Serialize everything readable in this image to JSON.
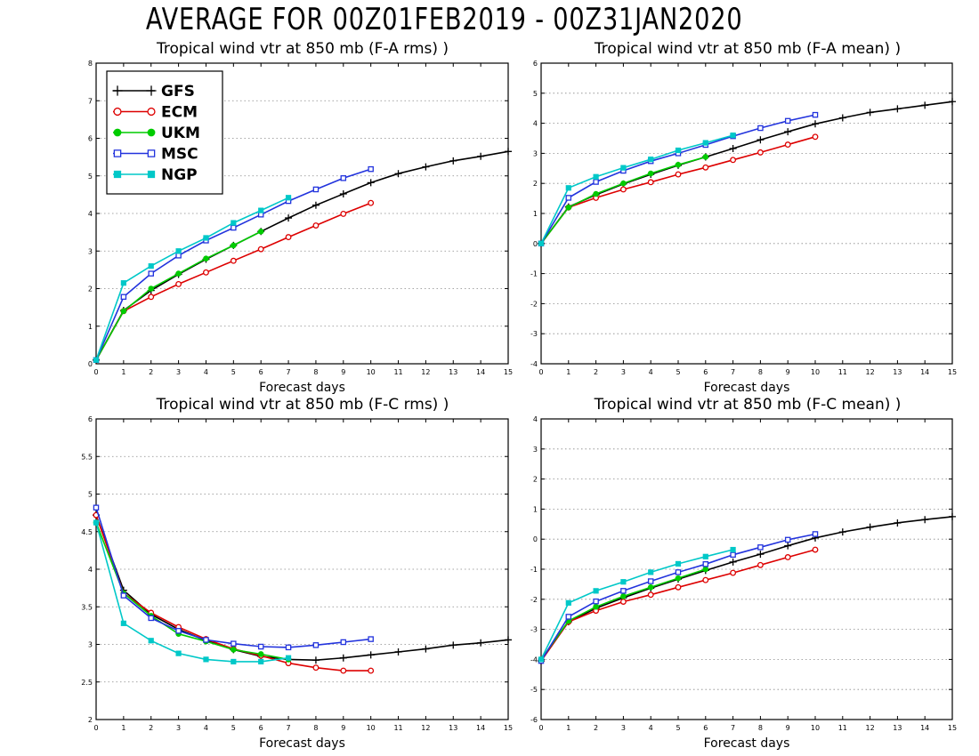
{
  "page_title": "AVERAGE FOR 00Z01FEB2019 - 00Z31JAN2020",
  "colors": {
    "GFS": "#000000",
    "ECM": "#dd0000",
    "UKM": "#00cc00",
    "MSC": "#2233dd",
    "NGP": "#00c8c8"
  },
  "legend": [
    {
      "name": "GFS",
      "marker": "plus"
    },
    {
      "name": "ECM",
      "marker": "circle-open"
    },
    {
      "name": "UKM",
      "marker": "circle-filled"
    },
    {
      "name": "MSC",
      "marker": "square-open"
    },
    {
      "name": "NGP",
      "marker": "square-filled"
    }
  ],
  "chart_data": [
    {
      "type": "line",
      "title": "Tropical wind vtr at 850 mb (F-A rms) )",
      "xlabel": "Forecast days",
      "ylabel": "",
      "xlim": [
        0,
        15
      ],
      "ylim": [
        0,
        8
      ],
      "xticks": [
        "0",
        "1",
        "2",
        "3",
        "4",
        "5",
        "6",
        "7",
        "8",
        "9",
        "10",
        "11",
        "12",
        "13",
        "14",
        "15"
      ],
      "yticks": [
        "0",
        "1",
        "2",
        "3",
        "4",
        "5",
        "6",
        "7",
        "8"
      ],
      "legend_position": "top-left",
      "series": [
        {
          "name": "GFS",
          "x": [
            0,
            1,
            2,
            3,
            4,
            5,
            6,
            7,
            8,
            9,
            10,
            11,
            12,
            13,
            14,
            15
          ],
          "y": [
            0.1,
            1.42,
            1.95,
            2.38,
            2.78,
            3.15,
            3.52,
            3.88,
            4.22,
            4.52,
            4.82,
            5.06,
            5.24,
            5.4,
            5.52,
            5.65
          ]
        },
        {
          "name": "ECM",
          "x": [
            0,
            1,
            2,
            3,
            4,
            5,
            6,
            7,
            8,
            9,
            10
          ],
          "y": [
            0.1,
            1.4,
            1.78,
            2.12,
            2.43,
            2.74,
            3.05,
            3.37,
            3.68,
            3.99,
            4.28
          ]
        },
        {
          "name": "UKM",
          "x": [
            0,
            1,
            2,
            3,
            4,
            5,
            6
          ],
          "y": [
            0.1,
            1.4,
            2.0,
            2.4,
            2.8,
            3.15,
            3.52
          ]
        },
        {
          "name": "MSC",
          "x": [
            0,
            1,
            2,
            3,
            4,
            5,
            6,
            7,
            8,
            9,
            10
          ],
          "y": [
            0.1,
            1.78,
            2.4,
            2.88,
            3.28,
            3.62,
            3.97,
            4.33,
            4.64,
            4.94,
            5.18
          ]
        },
        {
          "name": "NGP",
          "x": [
            0,
            1,
            2,
            3,
            4,
            5,
            6,
            7
          ],
          "y": [
            0.1,
            2.15,
            2.6,
            3.0,
            3.35,
            3.75,
            4.08,
            4.42
          ]
        }
      ]
    },
    {
      "type": "line",
      "title": "Tropical wind vtr at 850 mb (F-A mean) )",
      "xlabel": "Forecast days",
      "ylabel": "",
      "xlim": [
        0,
        15
      ],
      "ylim": [
        -4,
        6
      ],
      "xticks": [
        "0",
        "1",
        "2",
        "3",
        "4",
        "5",
        "6",
        "7",
        "8",
        "9",
        "10",
        "11",
        "12",
        "13",
        "14",
        "15"
      ],
      "yticks": [
        "-4",
        "-3",
        "-2",
        "-1",
        "0",
        "1",
        "2",
        "3",
        "4",
        "5",
        "6"
      ],
      "series": [
        {
          "name": "GFS",
          "x": [
            0,
            1,
            2,
            3,
            4,
            5,
            6,
            7,
            8,
            9,
            10,
            11,
            12,
            13,
            14,
            15
          ],
          "y": [
            0.0,
            1.22,
            1.62,
            1.98,
            2.3,
            2.6,
            2.88,
            3.16,
            3.45,
            3.72,
            3.98,
            4.18,
            4.36,
            4.48,
            4.6,
            4.72
          ]
        },
        {
          "name": "ECM",
          "x": [
            0,
            1,
            2,
            3,
            4,
            5,
            6,
            7,
            8,
            9,
            10
          ],
          "y": [
            0.0,
            1.2,
            1.52,
            1.8,
            2.04,
            2.3,
            2.53,
            2.78,
            3.03,
            3.29,
            3.55
          ]
        },
        {
          "name": "UKM",
          "x": [
            0,
            1,
            2,
            3,
            4,
            5,
            6
          ],
          "y": [
            0.0,
            1.2,
            1.65,
            2.0,
            2.33,
            2.62,
            2.88
          ]
        },
        {
          "name": "MSC",
          "x": [
            0,
            1,
            2,
            3,
            4,
            5,
            6,
            7,
            8,
            9,
            10
          ],
          "y": [
            0.0,
            1.52,
            2.05,
            2.42,
            2.74,
            3.0,
            3.28,
            3.57,
            3.84,
            4.08,
            4.28
          ]
        },
        {
          "name": "NGP",
          "x": [
            0,
            1,
            2,
            3,
            4,
            5,
            6,
            7
          ],
          "y": [
            0.0,
            1.85,
            2.22,
            2.52,
            2.8,
            3.1,
            3.35,
            3.6
          ]
        }
      ]
    },
    {
      "type": "line",
      "title": "Tropical wind vtr at 850 mb (F-C rms) )",
      "xlabel": "Forecast days",
      "ylabel": "",
      "xlim": [
        0,
        15
      ],
      "ylim": [
        2,
        6
      ],
      "xticks": [
        "0",
        "1",
        "2",
        "3",
        "4",
        "5",
        "6",
        "7",
        "8",
        "9",
        "10",
        "11",
        "12",
        "13",
        "14",
        "15"
      ],
      "yticks": [
        "2",
        "2.5",
        "3",
        "3.5",
        "4",
        "4.5",
        "5",
        "5.5",
        "6"
      ],
      "series": [
        {
          "name": "GFS",
          "x": [
            0,
            1,
            2,
            3,
            4,
            5,
            6,
            7,
            8,
            9,
            10,
            11,
            12,
            13,
            14,
            15
          ],
          "y": [
            4.72,
            3.72,
            3.4,
            3.2,
            3.05,
            2.93,
            2.84,
            2.8,
            2.79,
            2.82,
            2.86,
            2.9,
            2.94,
            2.99,
            3.02,
            3.06
          ]
        },
        {
          "name": "ECM",
          "x": [
            0,
            1,
            2,
            3,
            4,
            5,
            6,
            7,
            8,
            9,
            10
          ],
          "y": [
            4.72,
            3.68,
            3.42,
            3.23,
            3.07,
            2.94,
            2.85,
            2.75,
            2.69,
            2.65,
            2.65
          ]
        },
        {
          "name": "UKM",
          "x": [
            0,
            1,
            2,
            3,
            4,
            5,
            6,
            7
          ],
          "y": [
            4.62,
            3.68,
            3.38,
            3.14,
            3.04,
            2.93,
            2.87,
            2.8
          ]
        },
        {
          "name": "MSC",
          "x": [
            0,
            1,
            2,
            3,
            4,
            5,
            6,
            7,
            8,
            9,
            10
          ],
          "y": [
            4.82,
            3.65,
            3.35,
            3.18,
            3.06,
            3.01,
            2.97,
            2.96,
            2.99,
            3.03,
            3.07
          ]
        },
        {
          "name": "NGP",
          "x": [
            0,
            1,
            2,
            3,
            4,
            5,
            6,
            7
          ],
          "y": [
            4.62,
            3.28,
            3.05,
            2.88,
            2.8,
            2.77,
            2.77,
            2.82
          ]
        }
      ]
    },
    {
      "type": "line",
      "title": "Tropical wind vtr at 850 mb (F-C mean) )",
      "xlabel": "Forecast days",
      "ylabel": "",
      "xlim": [
        0,
        15
      ],
      "ylim": [
        -6,
        4
      ],
      "xticks": [
        "0",
        "1",
        "2",
        "3",
        "4",
        "5",
        "6",
        "7",
        "8",
        "9",
        "10",
        "11",
        "12",
        "13",
        "14",
        "15"
      ],
      "yticks": [
        "-6",
        "-5",
        "-4",
        "-3",
        "-2",
        "-1",
        "0",
        "1",
        "2",
        "3",
        "4"
      ],
      "series": [
        {
          "name": "GFS",
          "x": [
            0,
            1,
            2,
            3,
            4,
            5,
            6,
            7,
            8,
            9,
            10,
            11,
            12,
            13,
            14,
            15
          ],
          "y": [
            -4.05,
            -2.75,
            -2.3,
            -1.95,
            -1.63,
            -1.33,
            -1.04,
            -0.76,
            -0.5,
            -0.22,
            0.04,
            0.24,
            0.4,
            0.54,
            0.65,
            0.75
          ]
        },
        {
          "name": "ECM",
          "x": [
            0,
            1,
            2,
            3,
            4,
            5,
            6,
            7,
            8,
            9,
            10
          ],
          "y": [
            -4.05,
            -2.75,
            -2.38,
            -2.08,
            -1.85,
            -1.6,
            -1.36,
            -1.12,
            -0.86,
            -0.6,
            -0.35
          ]
        },
        {
          "name": "UKM",
          "x": [
            0,
            1,
            2,
            3,
            4,
            5,
            6
          ],
          "y": [
            -4.0,
            -2.72,
            -2.25,
            -1.9,
            -1.6,
            -1.3,
            -1.0
          ]
        },
        {
          "name": "MSC",
          "x": [
            0,
            1,
            2,
            3,
            4,
            5,
            6,
            7,
            8,
            9,
            10
          ],
          "y": [
            -4.05,
            -2.58,
            -2.07,
            -1.72,
            -1.4,
            -1.1,
            -0.83,
            -0.52,
            -0.27,
            -0.02,
            0.17
          ]
        },
        {
          "name": "NGP",
          "x": [
            0,
            1,
            2,
            3,
            4,
            5,
            6,
            7
          ],
          "y": [
            -4.0,
            -2.12,
            -1.72,
            -1.42,
            -1.1,
            -0.82,
            -0.58,
            -0.35
          ]
        }
      ]
    }
  ]
}
